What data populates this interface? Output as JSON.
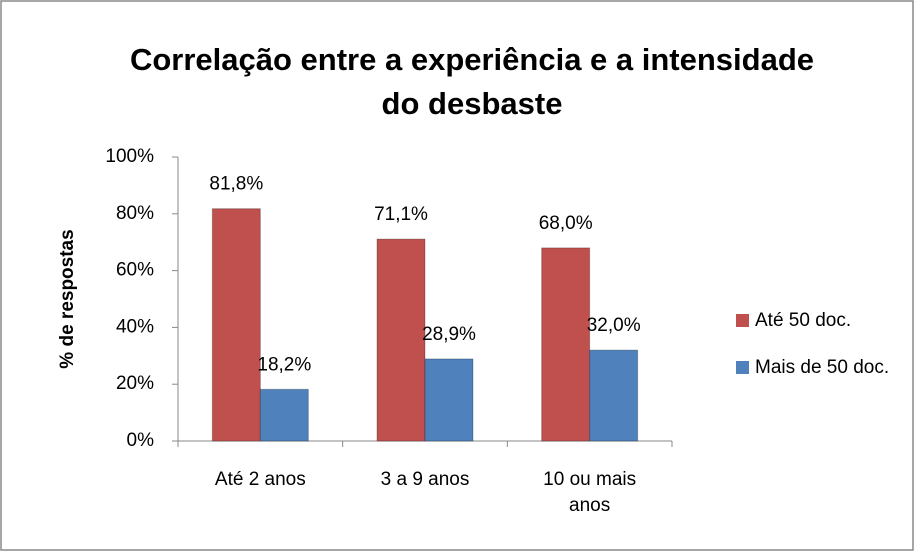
{
  "chart_data": {
    "type": "bar",
    "title": [
      "Correlação entre a experiência e a intensidade",
      "do desbaste"
    ],
    "y_label": "% de respostas",
    "categories": [
      "Até 2 anos",
      "3 a 9 anos",
      "10 ou mais anos"
    ],
    "series": [
      {
        "name": "Até 50 doc.",
        "color": "#c0504d",
        "values": [
          81.8,
          71.1,
          68.0
        ],
        "value_labels": [
          "81,8%",
          "71,1%",
          "68,0%"
        ]
      },
      {
        "name": "Mais de 50 doc.",
        "color": "#4f81bd",
        "values": [
          18.2,
          28.9,
          32.0
        ],
        "value_labels": [
          "18,2%",
          "28,9%",
          "32,0%"
        ]
      }
    ],
    "ylim": [
      0,
      100
    ],
    "yticks": [
      {
        "value": 0,
        "label": "0%"
      },
      {
        "value": 20,
        "label": "20%"
      },
      {
        "value": 40,
        "label": "40%"
      },
      {
        "value": 60,
        "label": "60%"
      },
      {
        "value": 80,
        "label": "80%"
      },
      {
        "value": 100,
        "label": "100%"
      }
    ],
    "legend": "right"
  }
}
